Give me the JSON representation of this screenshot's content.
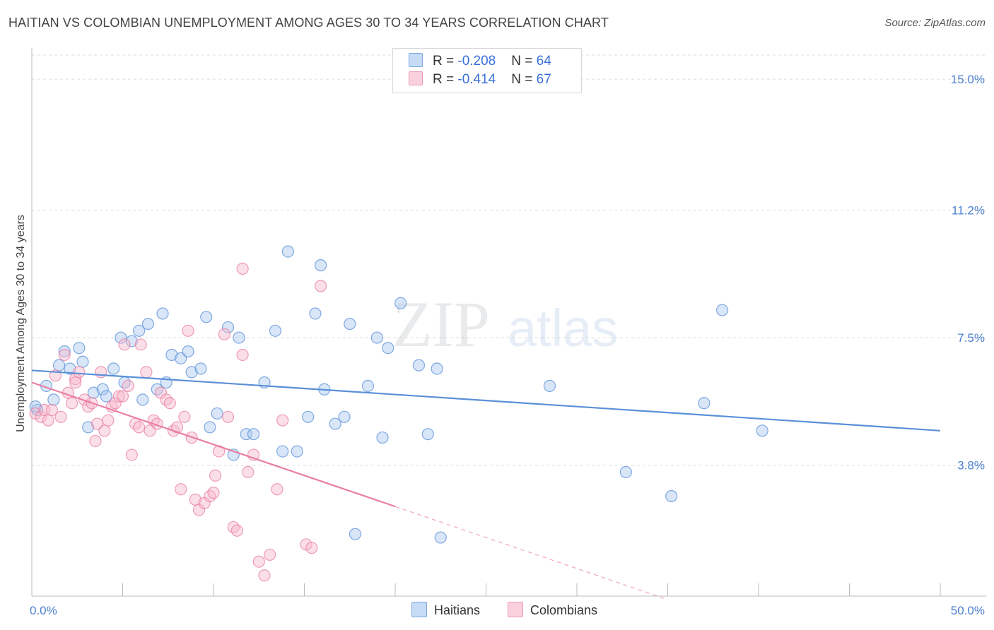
{
  "header": {
    "title": "HAITIAN VS COLOMBIAN UNEMPLOYMENT AMONG AGES 30 TO 34 YEARS CORRELATION CHART",
    "source": "Source: ZipAtlas.com"
  },
  "watermark": {
    "zip": "ZIP",
    "atlas": "atlas"
  },
  "legend": {
    "haitians": {
      "r_label": "R = ",
      "r_value": "-0.208",
      "n_label": "N = ",
      "n_value": "64",
      "color": "#a9c8f0",
      "stroke": "#5a8fd8"
    },
    "colombians": {
      "r_label": "R = ",
      "r_value": "-0.414",
      "n_label": "N = ",
      "n_value": "67",
      "color": "#f6b8cb",
      "stroke": "#e87fa2"
    }
  },
  "bottom_legend": {
    "haitians": "Haitians",
    "colombians": "Colombians"
  },
  "chart_data": {
    "type": "scatter",
    "title": "HAITIAN VS COLOMBIAN UNEMPLOYMENT AMONG AGES 30 TO 34 YEARS CORRELATION CHART",
    "xlabel": "",
    "ylabel": "Unemployment Among Ages 30 to 34 years",
    "xlim": [
      0,
      50
    ],
    "ylim": [
      0,
      15.7
    ],
    "x_tick_labels": [
      "0.0%",
      "50.0%"
    ],
    "y_ticks": [
      3.8,
      7.5,
      11.2,
      15.0
    ],
    "y_tick_labels": [
      "3.8%",
      "7.5%",
      "11.2%",
      "15.0%"
    ],
    "grid": "horizontal-dashed",
    "series": [
      {
        "name": "Haitians",
        "color": "#5a8fd8",
        "fill": "#a9c8f0",
        "trend": {
          "x": [
            0,
            50
          ],
          "y": [
            6.55,
            4.8
          ]
        },
        "points": [
          [
            0.3,
            5.4
          ],
          [
            0.8,
            6.1
          ],
          [
            1.2,
            5.7
          ],
          [
            1.5,
            6.7
          ],
          [
            1.8,
            7.1
          ],
          [
            2.1,
            6.6
          ],
          [
            2.6,
            7.2
          ],
          [
            2.8,
            6.8
          ],
          [
            3.1,
            4.9
          ],
          [
            3.4,
            5.9
          ],
          [
            3.9,
            6.0
          ],
          [
            4.1,
            5.8
          ],
          [
            4.5,
            6.6
          ],
          [
            4.9,
            7.5
          ],
          [
            5.1,
            6.2
          ],
          [
            5.5,
            7.4
          ],
          [
            5.9,
            7.7
          ],
          [
            6.1,
            5.7
          ],
          [
            6.4,
            7.9
          ],
          [
            6.9,
            6.0
          ],
          [
            7.2,
            8.2
          ],
          [
            7.4,
            6.2
          ],
          [
            7.7,
            7.0
          ],
          [
            8.2,
            6.9
          ],
          [
            8.6,
            7.1
          ],
          [
            8.8,
            6.5
          ],
          [
            9.3,
            6.6
          ],
          [
            9.6,
            8.1
          ],
          [
            9.8,
            4.9
          ],
          [
            10.2,
            5.3
          ],
          [
            10.8,
            7.8
          ],
          [
            11.1,
            4.1
          ],
          [
            11.4,
            7.5
          ],
          [
            11.8,
            4.7
          ],
          [
            12.2,
            4.7
          ],
          [
            12.8,
            6.2
          ],
          [
            13.4,
            7.7
          ],
          [
            13.8,
            4.2
          ],
          [
            14.1,
            10.0
          ],
          [
            14.6,
            4.2
          ],
          [
            15.2,
            5.2
          ],
          [
            15.6,
            8.2
          ],
          [
            15.9,
            9.6
          ],
          [
            16.1,
            6.0
          ],
          [
            16.7,
            5.0
          ],
          [
            17.2,
            5.2
          ],
          [
            17.5,
            7.9
          ],
          [
            17.8,
            1.8
          ],
          [
            18.5,
            6.1
          ],
          [
            19.0,
            7.5
          ],
          [
            19.3,
            4.6
          ],
          [
            19.6,
            7.2
          ],
          [
            20.3,
            8.5
          ],
          [
            21.3,
            6.7
          ],
          [
            21.8,
            4.7
          ],
          [
            22.3,
            6.6
          ],
          [
            22.5,
            1.7
          ],
          [
            28.5,
            6.1
          ],
          [
            32.7,
            3.6
          ],
          [
            35.2,
            2.9
          ],
          [
            37.0,
            5.6
          ],
          [
            38.0,
            8.3
          ],
          [
            40.2,
            4.8
          ],
          [
            0.2,
            5.5
          ]
        ]
      },
      {
        "name": "Colombians",
        "color": "#e87fa2",
        "fill": "#f6b8cb",
        "trend": {
          "x": [
            0,
            20
          ],
          "y": [
            6.2,
            2.6
          ]
        },
        "trend_ext": {
          "x": [
            20,
            35
          ],
          "y": [
            2.6,
            -0.1
          ]
        },
        "points": [
          [
            0.2,
            5.3
          ],
          [
            0.5,
            5.2
          ],
          [
            0.7,
            5.4
          ],
          [
            0.9,
            5.1
          ],
          [
            1.1,
            5.4
          ],
          [
            1.3,
            6.4
          ],
          [
            1.6,
            5.2
          ],
          [
            1.8,
            7.0
          ],
          [
            2.0,
            5.9
          ],
          [
            2.2,
            5.6
          ],
          [
            2.4,
            6.3
          ],
          [
            2.6,
            6.5
          ],
          [
            2.9,
            5.7
          ],
          [
            3.1,
            5.5
          ],
          [
            3.3,
            5.6
          ],
          [
            3.5,
            4.5
          ],
          [
            3.6,
            5.0
          ],
          [
            3.8,
            6.5
          ],
          [
            4.0,
            4.8
          ],
          [
            4.2,
            5.1
          ],
          [
            4.4,
            5.5
          ],
          [
            4.6,
            5.6
          ],
          [
            4.8,
            5.8
          ],
          [
            5.1,
            7.3
          ],
          [
            5.3,
            6.1
          ],
          [
            5.5,
            4.1
          ],
          [
            5.7,
            5.0
          ],
          [
            5.9,
            4.9
          ],
          [
            6.0,
            7.3
          ],
          [
            6.3,
            6.5
          ],
          [
            6.5,
            4.8
          ],
          [
            6.7,
            5.1
          ],
          [
            6.9,
            5.0
          ],
          [
            7.1,
            5.9
          ],
          [
            7.4,
            5.7
          ],
          [
            7.6,
            5.6
          ],
          [
            7.8,
            4.8
          ],
          [
            8.0,
            4.9
          ],
          [
            8.2,
            3.1
          ],
          [
            8.4,
            5.2
          ],
          [
            8.6,
            7.7
          ],
          [
            8.8,
            4.6
          ],
          [
            9.0,
            2.8
          ],
          [
            9.2,
            2.5
          ],
          [
            9.5,
            2.7
          ],
          [
            9.8,
            2.9
          ],
          [
            10.1,
            3.5
          ],
          [
            10.3,
            4.2
          ],
          [
            10.6,
            7.6
          ],
          [
            10.8,
            5.2
          ],
          [
            11.1,
            2.0
          ],
          [
            11.3,
            1.9
          ],
          [
            11.6,
            9.5
          ],
          [
            11.9,
            3.6
          ],
          [
            12.2,
            4.1
          ],
          [
            12.5,
            1.0
          ],
          [
            12.8,
            0.6
          ],
          [
            13.1,
            1.2
          ],
          [
            13.5,
            3.1
          ],
          [
            13.8,
            5.1
          ],
          [
            15.1,
            1.5
          ],
          [
            15.4,
            1.4
          ],
          [
            15.9,
            9.0
          ],
          [
            11.6,
            7.0
          ],
          [
            10.0,
            3.0
          ],
          [
            5.0,
            5.8
          ],
          [
            2.4,
            6.2
          ]
        ]
      }
    ]
  }
}
